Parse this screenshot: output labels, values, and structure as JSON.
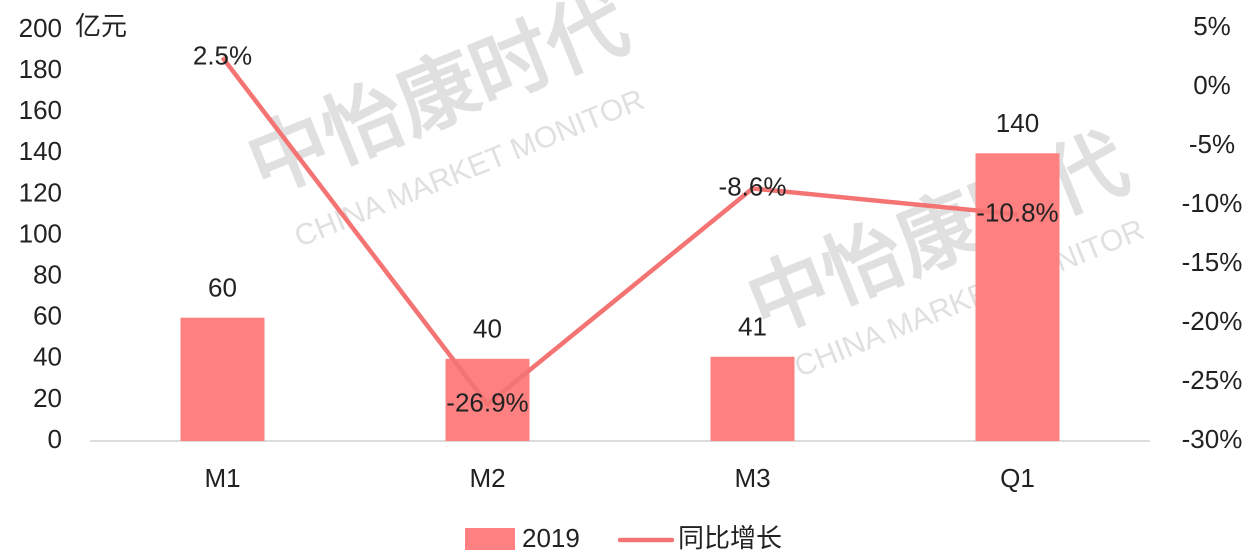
{
  "chart_data": {
    "type": "bar-line",
    "y_unit_label": "亿元",
    "categories": [
      "M1",
      "M2",
      "M3",
      "Q1"
    ],
    "series": [
      {
        "name": "2019",
        "color": "#ff8080",
        "type": "bar",
        "values": [
          60,
          40,
          41,
          140
        ]
      },
      {
        "name": "同比增长",
        "color": "#f47373",
        "type": "line",
        "axis": "y2",
        "values": [
          2.5,
          -26.9,
          -8.6,
          -10.8
        ],
        "value_labels": [
          "2.5%",
          "-26.9%",
          "-8.6%",
          "-10.8%"
        ]
      }
    ],
    "ylim": [
      0,
      200
    ],
    "yticks": [
      0,
      20,
      40,
      60,
      80,
      100,
      120,
      140,
      160,
      180,
      200
    ],
    "y2lim": [
      -30,
      5
    ],
    "y2ticks": [
      {
        "value": -30,
        "label": "-30%"
      },
      {
        "value": -25,
        "label": "-25%"
      },
      {
        "value": -20,
        "label": "-20%"
      },
      {
        "value": -15,
        "label": "-15%"
      },
      {
        "value": -10,
        "label": "-10%"
      },
      {
        "value": -5,
        "label": "-5%"
      },
      {
        "value": 0,
        "label": "0%"
      },
      {
        "value": 5,
        "label": "5%"
      }
    ],
    "legend": "bottom",
    "watermark": {
      "brand": "中怡康时代",
      "text": "CHINA MARKET MONITOR"
    }
  }
}
